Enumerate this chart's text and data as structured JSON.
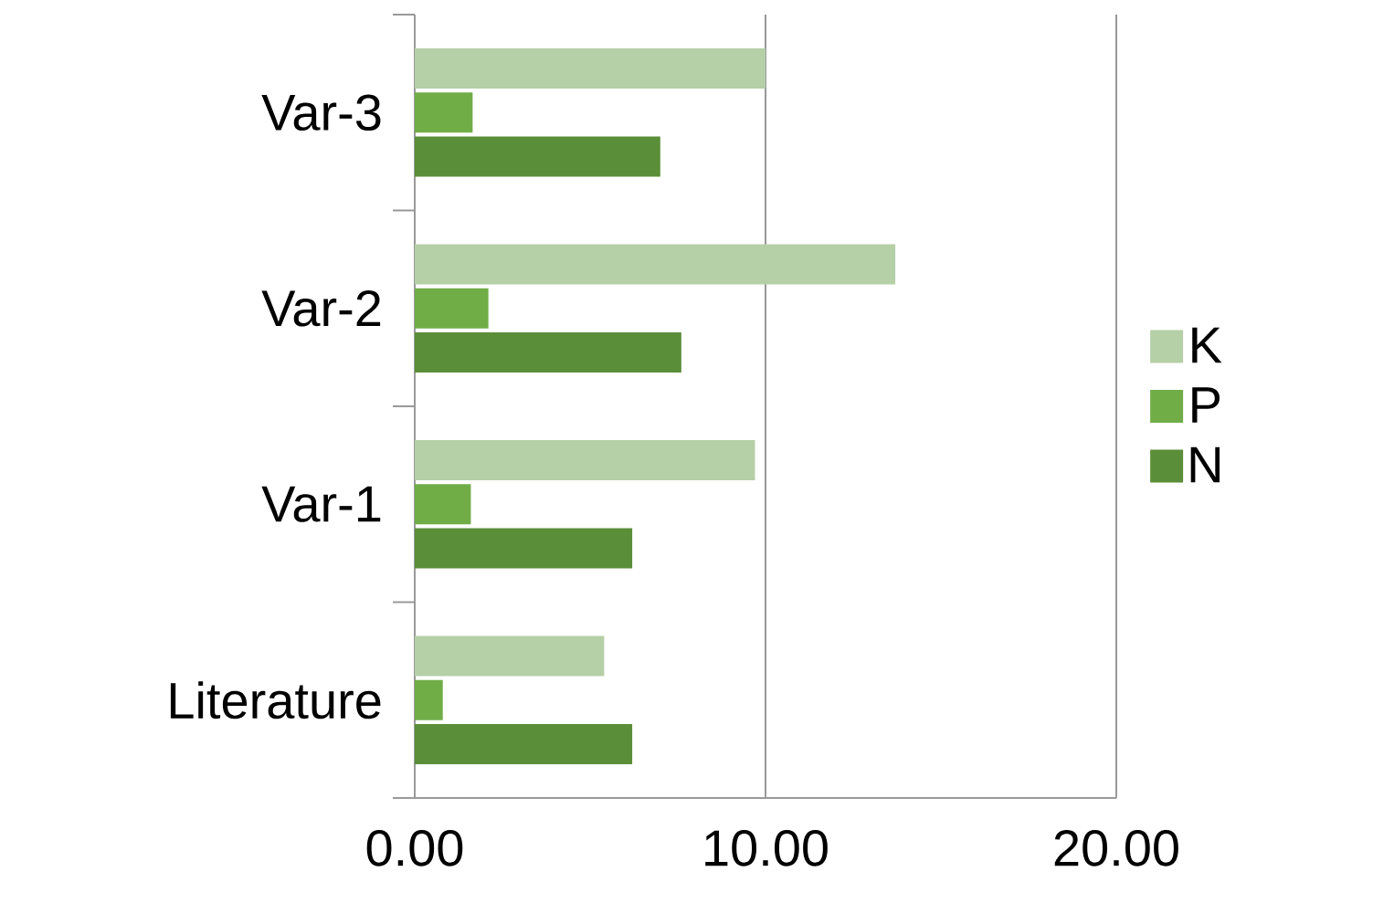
{
  "chart_data": {
    "type": "bar",
    "orientation": "horizontal",
    "categories": [
      "Var-3",
      "Var-2",
      "Var-1",
      "Literature"
    ],
    "series": [
      {
        "name": "K",
        "color": "#b5cfa7",
        "values": [
          10.0,
          13.7,
          9.7,
          5.4
        ]
      },
      {
        "name": "P",
        "color": "#70ad47",
        "values": [
          1.65,
          2.1,
          1.6,
          0.8
        ]
      },
      {
        "name": "N",
        "color": "#5b8e38",
        "values": [
          7.0,
          7.6,
          6.2,
          6.2
        ]
      }
    ],
    "xlim": [
      0,
      20
    ],
    "xticks": [
      {
        "value": 0,
        "label": "0.00"
      },
      {
        "value": 10,
        "label": "10.00"
      },
      {
        "value": 20,
        "label": "20.00"
      }
    ],
    "grid": "x",
    "legend": "right"
  }
}
